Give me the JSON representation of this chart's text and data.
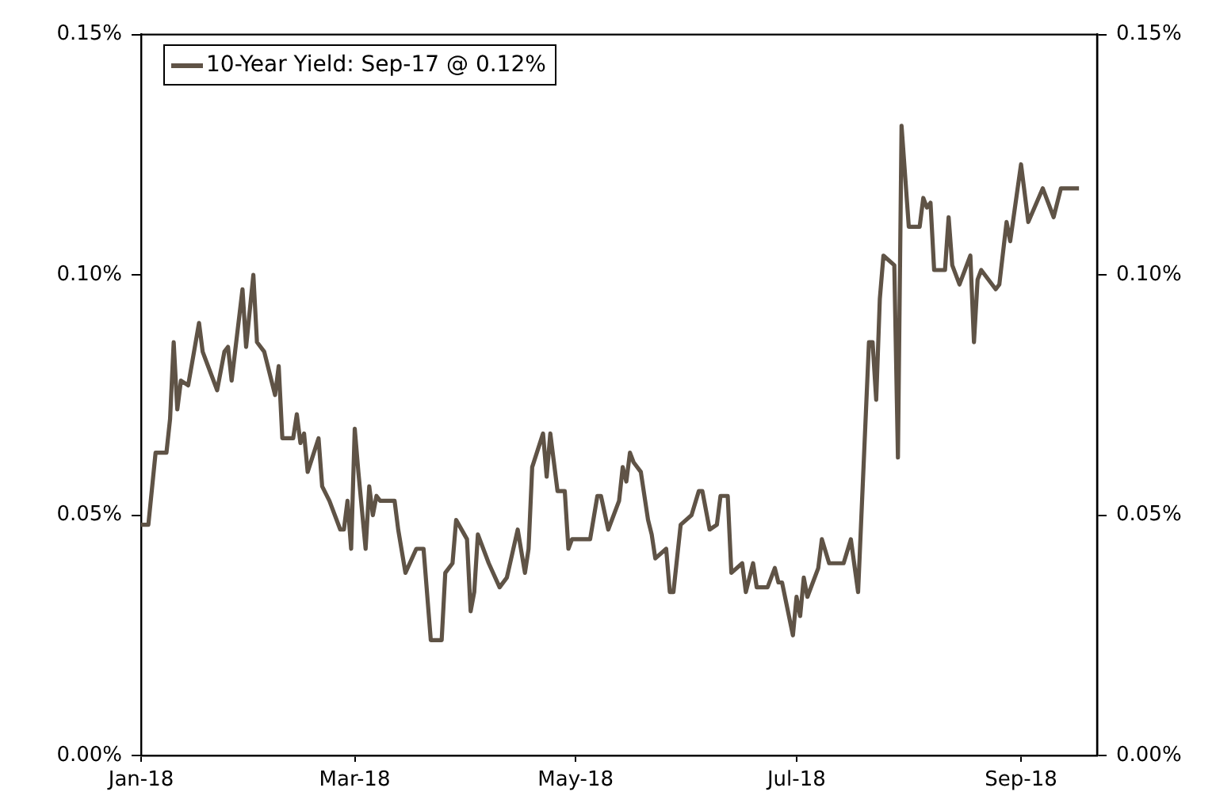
{
  "chart_data": {
    "type": "line",
    "x": [
      "2018-01-01",
      "2018-01-03",
      "2018-01-05",
      "2018-01-08",
      "2018-01-09",
      "2018-01-10",
      "2018-01-11",
      "2018-01-12",
      "2018-01-14",
      "2018-01-17",
      "2018-01-18",
      "2018-01-22",
      "2018-01-24",
      "2018-01-25",
      "2018-01-26",
      "2018-01-29",
      "2018-01-30",
      "2018-02-01",
      "2018-02-02",
      "2018-02-04",
      "2018-02-06",
      "2018-02-07",
      "2018-02-08",
      "2018-02-09",
      "2018-02-12",
      "2018-02-13",
      "2018-02-14",
      "2018-02-15",
      "2018-02-16",
      "2018-02-19",
      "2018-02-20",
      "2018-02-22",
      "2018-02-25",
      "2018-02-26",
      "2018-02-27",
      "2018-02-28",
      "2018-03-01",
      "2018-03-02",
      "2018-03-04",
      "2018-03-05",
      "2018-03-06",
      "2018-03-07",
      "2018-03-08",
      "2018-03-12",
      "2018-03-13",
      "2018-03-15",
      "2018-03-18",
      "2018-03-20",
      "2018-03-22",
      "2018-03-25",
      "2018-03-26",
      "2018-03-28",
      "2018-03-29",
      "2018-04-01",
      "2018-04-02",
      "2018-04-03",
      "2018-04-04",
      "2018-04-07",
      "2018-04-10",
      "2018-04-12",
      "2018-04-15",
      "2018-04-17",
      "2018-04-18",
      "2018-04-19",
      "2018-04-22",
      "2018-04-23",
      "2018-04-24",
      "2018-04-26",
      "2018-04-28",
      "2018-04-29",
      "2018-04-30",
      "2018-05-05",
      "2018-05-07",
      "2018-05-08",
      "2018-05-10",
      "2018-05-13",
      "2018-05-14",
      "2018-05-15",
      "2018-05-16",
      "2018-05-17",
      "2018-05-19",
      "2018-05-21",
      "2018-05-22",
      "2018-05-23",
      "2018-05-26",
      "2018-05-27",
      "2018-05-28",
      "2018-05-30",
      "2018-06-02",
      "2018-06-04",
      "2018-06-05",
      "2018-06-07",
      "2018-06-09",
      "2018-06-10",
      "2018-06-12",
      "2018-06-13",
      "2018-06-16",
      "2018-06-17",
      "2018-06-19",
      "2018-06-20",
      "2018-06-23",
      "2018-06-25",
      "2018-06-26",
      "2018-06-27",
      "2018-06-30",
      "2018-07-01",
      "2018-07-02",
      "2018-07-03",
      "2018-07-04",
      "2018-07-07",
      "2018-07-08",
      "2018-07-10",
      "2018-07-14",
      "2018-07-16",
      "2018-07-18",
      "2018-07-21",
      "2018-07-22",
      "2018-07-23",
      "2018-07-24",
      "2018-07-25",
      "2018-07-28",
      "2018-07-29",
      "2018-07-30",
      "2018-08-01",
      "2018-08-04",
      "2018-08-05",
      "2018-08-06",
      "2018-08-07",
      "2018-08-08",
      "2018-08-11",
      "2018-08-12",
      "2018-08-13",
      "2018-08-15",
      "2018-08-18",
      "2018-08-19",
      "2018-08-20",
      "2018-08-21",
      "2018-08-25",
      "2018-08-26",
      "2018-08-28",
      "2018-08-29",
      "2018-09-01",
      "2018-09-03",
      "2018-09-07",
      "2018-09-10",
      "2018-09-12",
      "2018-09-17"
    ],
    "series": [
      {
        "name": "10-Year Yield: Sep-17 @ 0.12%",
        "color": "#5f5346",
        "values": [
          0.048,
          0.048,
          0.063,
          0.063,
          0.07,
          0.086,
          0.072,
          0.078,
          0.077,
          0.09,
          0.084,
          0.076,
          0.084,
          0.085,
          0.078,
          0.097,
          0.085,
          0.1,
          0.086,
          0.084,
          0.078,
          0.075,
          0.081,
          0.066,
          0.066,
          0.071,
          0.065,
          0.067,
          0.059,
          0.066,
          0.056,
          0.053,
          0.047,
          0.047,
          0.053,
          0.043,
          0.068,
          0.059,
          0.043,
          0.056,
          0.05,
          0.054,
          0.053,
          0.053,
          0.047,
          0.038,
          0.043,
          0.043,
          0.024,
          0.024,
          0.038,
          0.04,
          0.049,
          0.045,
          0.03,
          0.034,
          0.046,
          0.04,
          0.035,
          0.037,
          0.047,
          0.038,
          0.043,
          0.06,
          0.067,
          0.058,
          0.067,
          0.055,
          0.055,
          0.043,
          0.045,
          0.045,
          0.054,
          0.054,
          0.047,
          0.053,
          0.06,
          0.057,
          0.063,
          0.061,
          0.059,
          0.049,
          0.046,
          0.041,
          0.043,
          0.034,
          0.034,
          0.048,
          0.05,
          0.055,
          0.055,
          0.047,
          0.048,
          0.054,
          0.054,
          0.038,
          0.04,
          0.034,
          0.04,
          0.035,
          0.035,
          0.039,
          0.036,
          0.036,
          0.025,
          0.033,
          0.029,
          0.037,
          0.033,
          0.039,
          0.045,
          0.04,
          0.04,
          0.045,
          0.034,
          0.086,
          0.086,
          0.074,
          0.095,
          0.104,
          0.102,
          0.062,
          0.131,
          0.11,
          0.11,
          0.116,
          0.114,
          0.115,
          0.101,
          0.101,
          0.112,
          0.102,
          0.098,
          0.104,
          0.086,
          0.099,
          0.101,
          0.097,
          0.098,
          0.111,
          0.107,
          0.123,
          0.111,
          0.118,
          0.112,
          0.118,
          0.118
        ]
      }
    ],
    "xlim": [
      "2018-01-01",
      "2018-09-22"
    ],
    "xticks": [
      {
        "value": "2018-01-01",
        "label": "Jan-18"
      },
      {
        "value": "2018-03-01",
        "label": "Mar-18"
      },
      {
        "value": "2018-05-01",
        "label": "May-18"
      },
      {
        "value": "2018-07-01",
        "label": "Jul-18"
      },
      {
        "value": "2018-09-01",
        "label": "Sep-18"
      }
    ],
    "ylim": [
      0,
      0.15
    ],
    "yticks": [
      {
        "value": 0,
        "label": "0.00%"
      },
      {
        "value": 0.05,
        "label": "0.05%"
      },
      {
        "value": 0.1,
        "label": "0.10%"
      },
      {
        "value": 0.15,
        "label": "0.15%"
      }
    ],
    "y2lim": [
      0,
      0.15
    ],
    "y2ticks": [
      {
        "value": 0,
        "label": "0.00%"
      },
      {
        "value": 0.05,
        "label": "0.05%"
      },
      {
        "value": 0.1,
        "label": "0.10%"
      },
      {
        "value": 0.15,
        "label": "0.15%"
      }
    ],
    "grid": false,
    "legend": "top left",
    "marker": "none",
    "line_style": "solid"
  }
}
